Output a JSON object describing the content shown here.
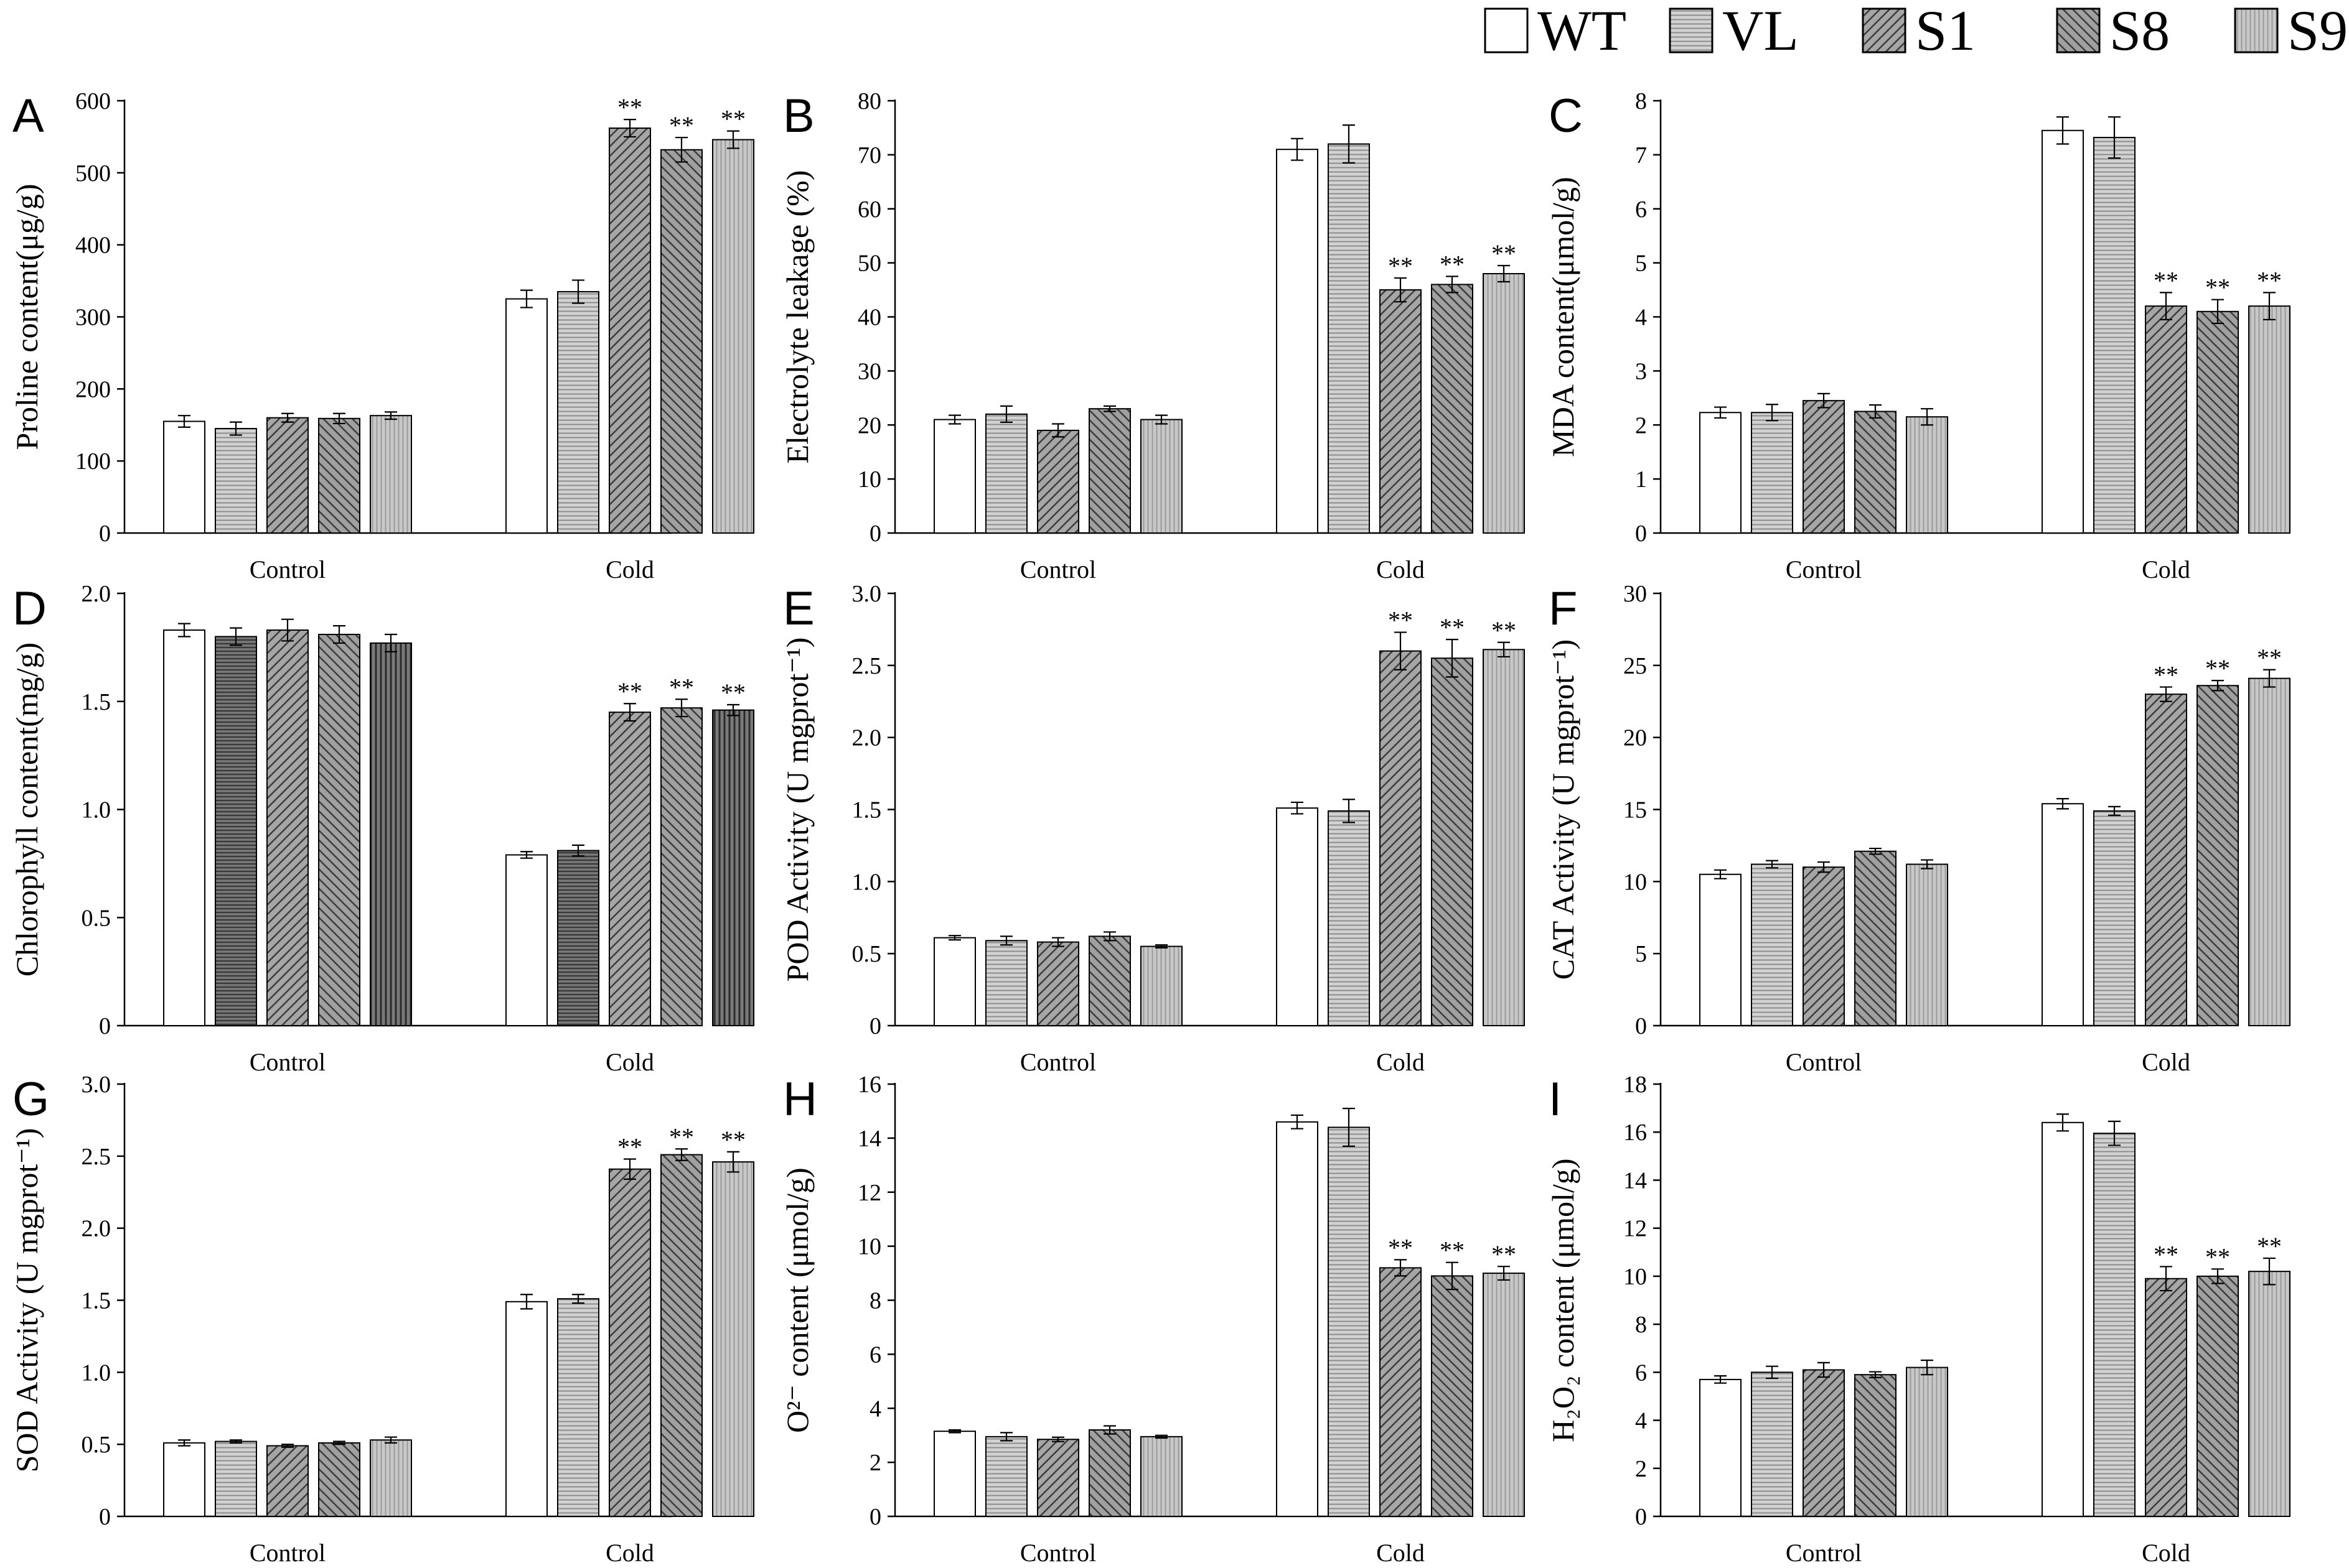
{
  "legend": {
    "items": [
      {
        "label": "WT",
        "pattern": "solid-white"
      },
      {
        "label": "VL",
        "pattern": "horizontal"
      },
      {
        "label": "S1",
        "pattern": "diag-left"
      },
      {
        "label": "S8",
        "pattern": "diag-right"
      },
      {
        "label": "S9",
        "pattern": "vertical"
      }
    ]
  },
  "chart_data": [
    {
      "panel": "A",
      "type": "bar",
      "categories": [
        "Control",
        "Cold"
      ],
      "ylabel": "Proline content(μg/g)",
      "ylim": [
        0,
        600
      ],
      "yticks": [
        0,
        100,
        200,
        300,
        400,
        500,
        600
      ],
      "tick_decimals": 0,
      "series": [
        {
          "name": "WT",
          "pattern": "solid-white",
          "values": [
            155,
            325
          ],
          "errors": [
            8,
            12
          ]
        },
        {
          "name": "VL",
          "pattern": "horizontal",
          "values": [
            145,
            335
          ],
          "errors": [
            9,
            16
          ]
        },
        {
          "name": "S1",
          "pattern": "diag-left",
          "values": [
            160,
            562
          ],
          "errors": [
            6,
            12
          ]
        },
        {
          "name": "S8",
          "pattern": "diag-right",
          "values": [
            159,
            532
          ],
          "errors": [
            7,
            17
          ]
        },
        {
          "name": "S9",
          "pattern": "vertical",
          "values": [
            163,
            546
          ],
          "errors": [
            5,
            12
          ]
        }
      ],
      "annotations": [
        [
          "",
          ""
        ],
        [
          "",
          ""
        ],
        [
          "",
          "**"
        ],
        [
          "",
          "**"
        ],
        [
          "",
          "**"
        ]
      ]
    },
    {
      "panel": "B",
      "type": "bar",
      "categories": [
        "Control",
        "Cold"
      ],
      "ylabel": "Electrolyte leakage (%)",
      "ylim": [
        0,
        80
      ],
      "yticks": [
        0,
        10,
        20,
        30,
        40,
        50,
        60,
        70,
        80
      ],
      "tick_decimals": 0,
      "series": [
        {
          "name": "WT",
          "pattern": "solid-white",
          "values": [
            21,
            71
          ],
          "errors": [
            0.8,
            2
          ]
        },
        {
          "name": "VL",
          "pattern": "horizontal",
          "values": [
            22,
            72
          ],
          "errors": [
            1.5,
            3.5
          ]
        },
        {
          "name": "S1",
          "pattern": "diag-left",
          "values": [
            19,
            45
          ],
          "errors": [
            1.2,
            2.2
          ]
        },
        {
          "name": "S8",
          "pattern": "diag-right",
          "values": [
            23,
            46
          ],
          "errors": [
            0.5,
            1.5
          ]
        },
        {
          "name": "S9",
          "pattern": "vertical",
          "values": [
            21,
            48
          ],
          "errors": [
            0.8,
            1.5
          ]
        }
      ],
      "annotations": [
        [
          "",
          ""
        ],
        [
          "",
          ""
        ],
        [
          "",
          "**"
        ],
        [
          "",
          "**"
        ],
        [
          "",
          "**"
        ]
      ]
    },
    {
      "panel": "C",
      "type": "bar",
      "categories": [
        "Control",
        "Cold"
      ],
      "ylabel": "MDA content(μmol/g)",
      "ylim": [
        0,
        8
      ],
      "yticks": [
        0,
        1,
        2,
        3,
        4,
        5,
        6,
        7,
        8
      ],
      "tick_decimals": 0,
      "series": [
        {
          "name": "WT",
          "pattern": "solid-white",
          "values": [
            2.23,
            7.45
          ],
          "errors": [
            0.1,
            0.25
          ]
        },
        {
          "name": "VL",
          "pattern": "horizontal",
          "values": [
            2.23,
            7.32
          ],
          "errors": [
            0.15,
            0.38
          ]
        },
        {
          "name": "S1",
          "pattern": "diag-left",
          "values": [
            2.45,
            4.2
          ],
          "errors": [
            0.13,
            0.25
          ]
        },
        {
          "name": "S8",
          "pattern": "diag-right",
          "values": [
            2.25,
            4.1
          ],
          "errors": [
            0.12,
            0.22
          ]
        },
        {
          "name": "S9",
          "pattern": "vertical",
          "values": [
            2.15,
            4.2
          ],
          "errors": [
            0.15,
            0.25
          ]
        }
      ],
      "annotations": [
        [
          "",
          ""
        ],
        [
          "",
          ""
        ],
        [
          "",
          "**"
        ],
        [
          "",
          "**"
        ],
        [
          "",
          "**"
        ]
      ]
    },
    {
      "panel": "D",
      "type": "bar",
      "categories": [
        "Control",
        "Cold"
      ],
      "ylabel": "Chlorophyll content(mg/g)",
      "ylim": [
        0,
        2.0
      ],
      "yticks": [
        0,
        0.5,
        1.0,
        1.5,
        2.0
      ],
      "tick_decimals": 1,
      "series": [
        {
          "name": "WT",
          "pattern": "solid-white",
          "values": [
            1.83,
            0.79
          ],
          "errors": [
            0.03,
            0.015
          ]
        },
        {
          "name": "VL",
          "pattern": "horizontal-dark",
          "values": [
            1.8,
            0.81
          ],
          "errors": [
            0.04,
            0.025
          ]
        },
        {
          "name": "S1",
          "pattern": "diag-left",
          "values": [
            1.83,
            1.45
          ],
          "errors": [
            0.05,
            0.04
          ]
        },
        {
          "name": "S8",
          "pattern": "diag-right",
          "values": [
            1.81,
            1.47
          ],
          "errors": [
            0.04,
            0.04
          ]
        },
        {
          "name": "S9",
          "pattern": "vertical-dark",
          "values": [
            1.77,
            1.46
          ],
          "errors": [
            0.04,
            0.025
          ]
        }
      ],
      "annotations": [
        [
          "",
          ""
        ],
        [
          "",
          ""
        ],
        [
          "",
          "**"
        ],
        [
          "",
          "**"
        ],
        [
          "",
          "**"
        ]
      ]
    },
    {
      "panel": "E",
      "type": "bar",
      "categories": [
        "Control",
        "Cold"
      ],
      "ylabel": "POD Activity (U mgprot⁻¹)",
      "ylim": [
        0,
        3.0
      ],
      "yticks": [
        0,
        0.5,
        1.0,
        1.5,
        2.0,
        2.5,
        3.0
      ],
      "tick_decimals": 1,
      "series": [
        {
          "name": "WT",
          "pattern": "solid-white",
          "values": [
            0.61,
            1.51
          ],
          "errors": [
            0.015,
            0.04
          ]
        },
        {
          "name": "VL",
          "pattern": "horizontal",
          "values": [
            0.59,
            1.49
          ],
          "errors": [
            0.03,
            0.08
          ]
        },
        {
          "name": "S1",
          "pattern": "diag-left",
          "values": [
            0.58,
            2.6
          ],
          "errors": [
            0.03,
            0.13
          ]
        },
        {
          "name": "S8",
          "pattern": "diag-right",
          "values": [
            0.62,
            2.55
          ],
          "errors": [
            0.03,
            0.13
          ]
        },
        {
          "name": "S9",
          "pattern": "vertical",
          "values": [
            0.55,
            2.61
          ],
          "errors": [
            0.01,
            0.05
          ]
        }
      ],
      "annotations": [
        [
          "",
          ""
        ],
        [
          "",
          ""
        ],
        [
          "",
          "**"
        ],
        [
          "",
          "**"
        ],
        [
          "",
          "**"
        ]
      ]
    },
    {
      "panel": "F",
      "type": "bar",
      "categories": [
        "Control",
        "Cold"
      ],
      "ylabel": "CAT Activity (U mgprot⁻¹)",
      "ylim": [
        0,
        30
      ],
      "yticks": [
        0,
        5,
        10,
        15,
        20,
        25,
        30
      ],
      "tick_decimals": 0,
      "series": [
        {
          "name": "WT",
          "pattern": "solid-white",
          "values": [
            10.5,
            15.4
          ],
          "errors": [
            0.3,
            0.35
          ]
        },
        {
          "name": "VL",
          "pattern": "horizontal",
          "values": [
            11.2,
            14.9
          ],
          "errors": [
            0.25,
            0.3
          ]
        },
        {
          "name": "S1",
          "pattern": "diag-left",
          "values": [
            11.0,
            23.0
          ],
          "errors": [
            0.35,
            0.5
          ]
        },
        {
          "name": "S8",
          "pattern": "diag-right",
          "values": [
            12.1,
            23.6
          ],
          "errors": [
            0.2,
            0.35
          ]
        },
        {
          "name": "S9",
          "pattern": "vertical",
          "values": [
            11.2,
            24.1
          ],
          "errors": [
            0.3,
            0.6
          ]
        }
      ],
      "annotations": [
        [
          "",
          ""
        ],
        [
          "",
          ""
        ],
        [
          "",
          "**"
        ],
        [
          "",
          "**"
        ],
        [
          "",
          "**"
        ]
      ]
    },
    {
      "panel": "G",
      "type": "bar",
      "categories": [
        "Control",
        "Cold"
      ],
      "ylabel": "SOD Activity (U mgprot⁻¹)",
      "ylim": [
        0,
        3.0
      ],
      "yticks": [
        0,
        0.5,
        1.0,
        1.5,
        2.0,
        2.5,
        3.0
      ],
      "tick_decimals": 1,
      "series": [
        {
          "name": "WT",
          "pattern": "solid-white",
          "values": [
            0.51,
            1.49
          ],
          "errors": [
            0.02,
            0.05
          ]
        },
        {
          "name": "VL",
          "pattern": "horizontal",
          "values": [
            0.52,
            1.51
          ],
          "errors": [
            0.01,
            0.03
          ]
        },
        {
          "name": "S1",
          "pattern": "diag-left",
          "values": [
            0.49,
            2.41
          ],
          "errors": [
            0.01,
            0.07
          ]
        },
        {
          "name": "S8",
          "pattern": "diag-right",
          "values": [
            0.51,
            2.51
          ],
          "errors": [
            0.01,
            0.04
          ]
        },
        {
          "name": "S9",
          "pattern": "vertical",
          "values": [
            0.53,
            2.46
          ],
          "errors": [
            0.02,
            0.07
          ]
        }
      ],
      "annotations": [
        [
          "",
          ""
        ],
        [
          "",
          ""
        ],
        [
          "",
          "**"
        ],
        [
          "",
          "**"
        ],
        [
          "",
          "**"
        ]
      ]
    },
    {
      "panel": "H",
      "type": "bar",
      "categories": [
        "Control",
        "Cold"
      ],
      "ylabel": "O²⁻ content (μmol/g)",
      "ylim": [
        0,
        16
      ],
      "yticks": [
        0,
        2,
        4,
        6,
        8,
        10,
        12,
        14,
        16
      ],
      "tick_decimals": 0,
      "series": [
        {
          "name": "WT",
          "pattern": "solid-white",
          "values": [
            3.15,
            14.6
          ],
          "errors": [
            0.05,
            0.25
          ]
        },
        {
          "name": "VL",
          "pattern": "horizontal",
          "values": [
            2.95,
            14.4
          ],
          "errors": [
            0.15,
            0.7
          ]
        },
        {
          "name": "S1",
          "pattern": "diag-left",
          "values": [
            2.85,
            9.2
          ],
          "errors": [
            0.08,
            0.3
          ]
        },
        {
          "name": "S8",
          "pattern": "diag-right",
          "values": [
            3.2,
            8.9
          ],
          "errors": [
            0.15,
            0.5
          ]
        },
        {
          "name": "S9",
          "pattern": "vertical",
          "values": [
            2.95,
            9.0
          ],
          "errors": [
            0.05,
            0.25
          ]
        }
      ],
      "annotations": [
        [
          "",
          ""
        ],
        [
          "",
          ""
        ],
        [
          "",
          "**"
        ],
        [
          "",
          "**"
        ],
        [
          "",
          "**"
        ]
      ]
    },
    {
      "panel": "I",
      "type": "bar",
      "categories": [
        "Control",
        "Cold"
      ],
      "ylabel": "H₂O₂ content (μmol/g)",
      "ylim": [
        0,
        18
      ],
      "yticks": [
        0,
        2,
        4,
        6,
        8,
        10,
        12,
        14,
        16,
        18
      ],
      "tick_decimals": 0,
      "series": [
        {
          "name": "WT",
          "pattern": "solid-white",
          "values": [
            5.7,
            16.4
          ],
          "errors": [
            0.15,
            0.35
          ]
        },
        {
          "name": "VL",
          "pattern": "horizontal",
          "values": [
            6.0,
            15.95
          ],
          "errors": [
            0.25,
            0.5
          ]
        },
        {
          "name": "S1",
          "pattern": "diag-left",
          "values": [
            6.1,
            9.9
          ],
          "errors": [
            0.3,
            0.5
          ]
        },
        {
          "name": "S8",
          "pattern": "diag-right",
          "values": [
            5.9,
            10.0
          ],
          "errors": [
            0.12,
            0.3
          ]
        },
        {
          "name": "S9",
          "pattern": "vertical",
          "values": [
            6.2,
            10.2
          ],
          "errors": [
            0.3,
            0.55
          ]
        }
      ],
      "annotations": [
        [
          "",
          ""
        ],
        [
          "",
          ""
        ],
        [
          "",
          "**"
        ],
        [
          "",
          "**"
        ],
        [
          "",
          "**"
        ]
      ]
    }
  ]
}
